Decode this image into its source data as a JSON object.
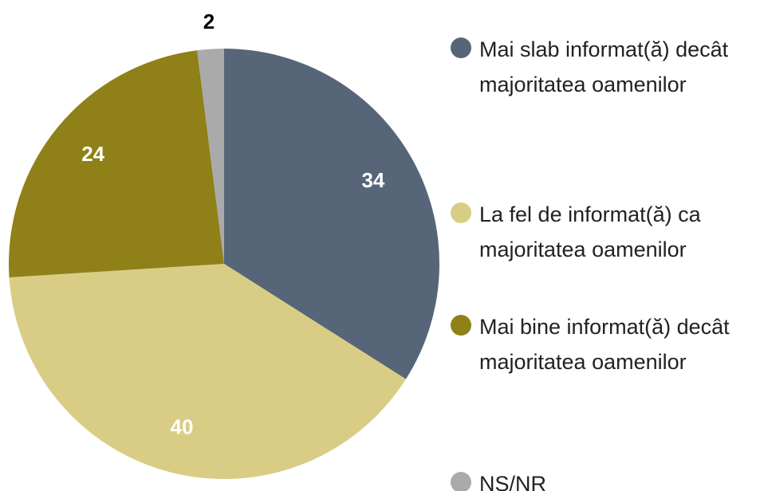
{
  "chart_data": {
    "type": "pie",
    "categories": [
      "Mai slab informat(ă) decât majoritatea oamenilor",
      "La fel de informat(ă) ca majoritatea oamenilor",
      "Mai bine informat(ă) decât majoritatea oamenilor",
      "NȘ/NR"
    ],
    "values": [
      34,
      40,
      24,
      2
    ],
    "colors": [
      "#566678",
      "#d9cd86",
      "#8f8018",
      "#aaaaaa"
    ]
  }
}
